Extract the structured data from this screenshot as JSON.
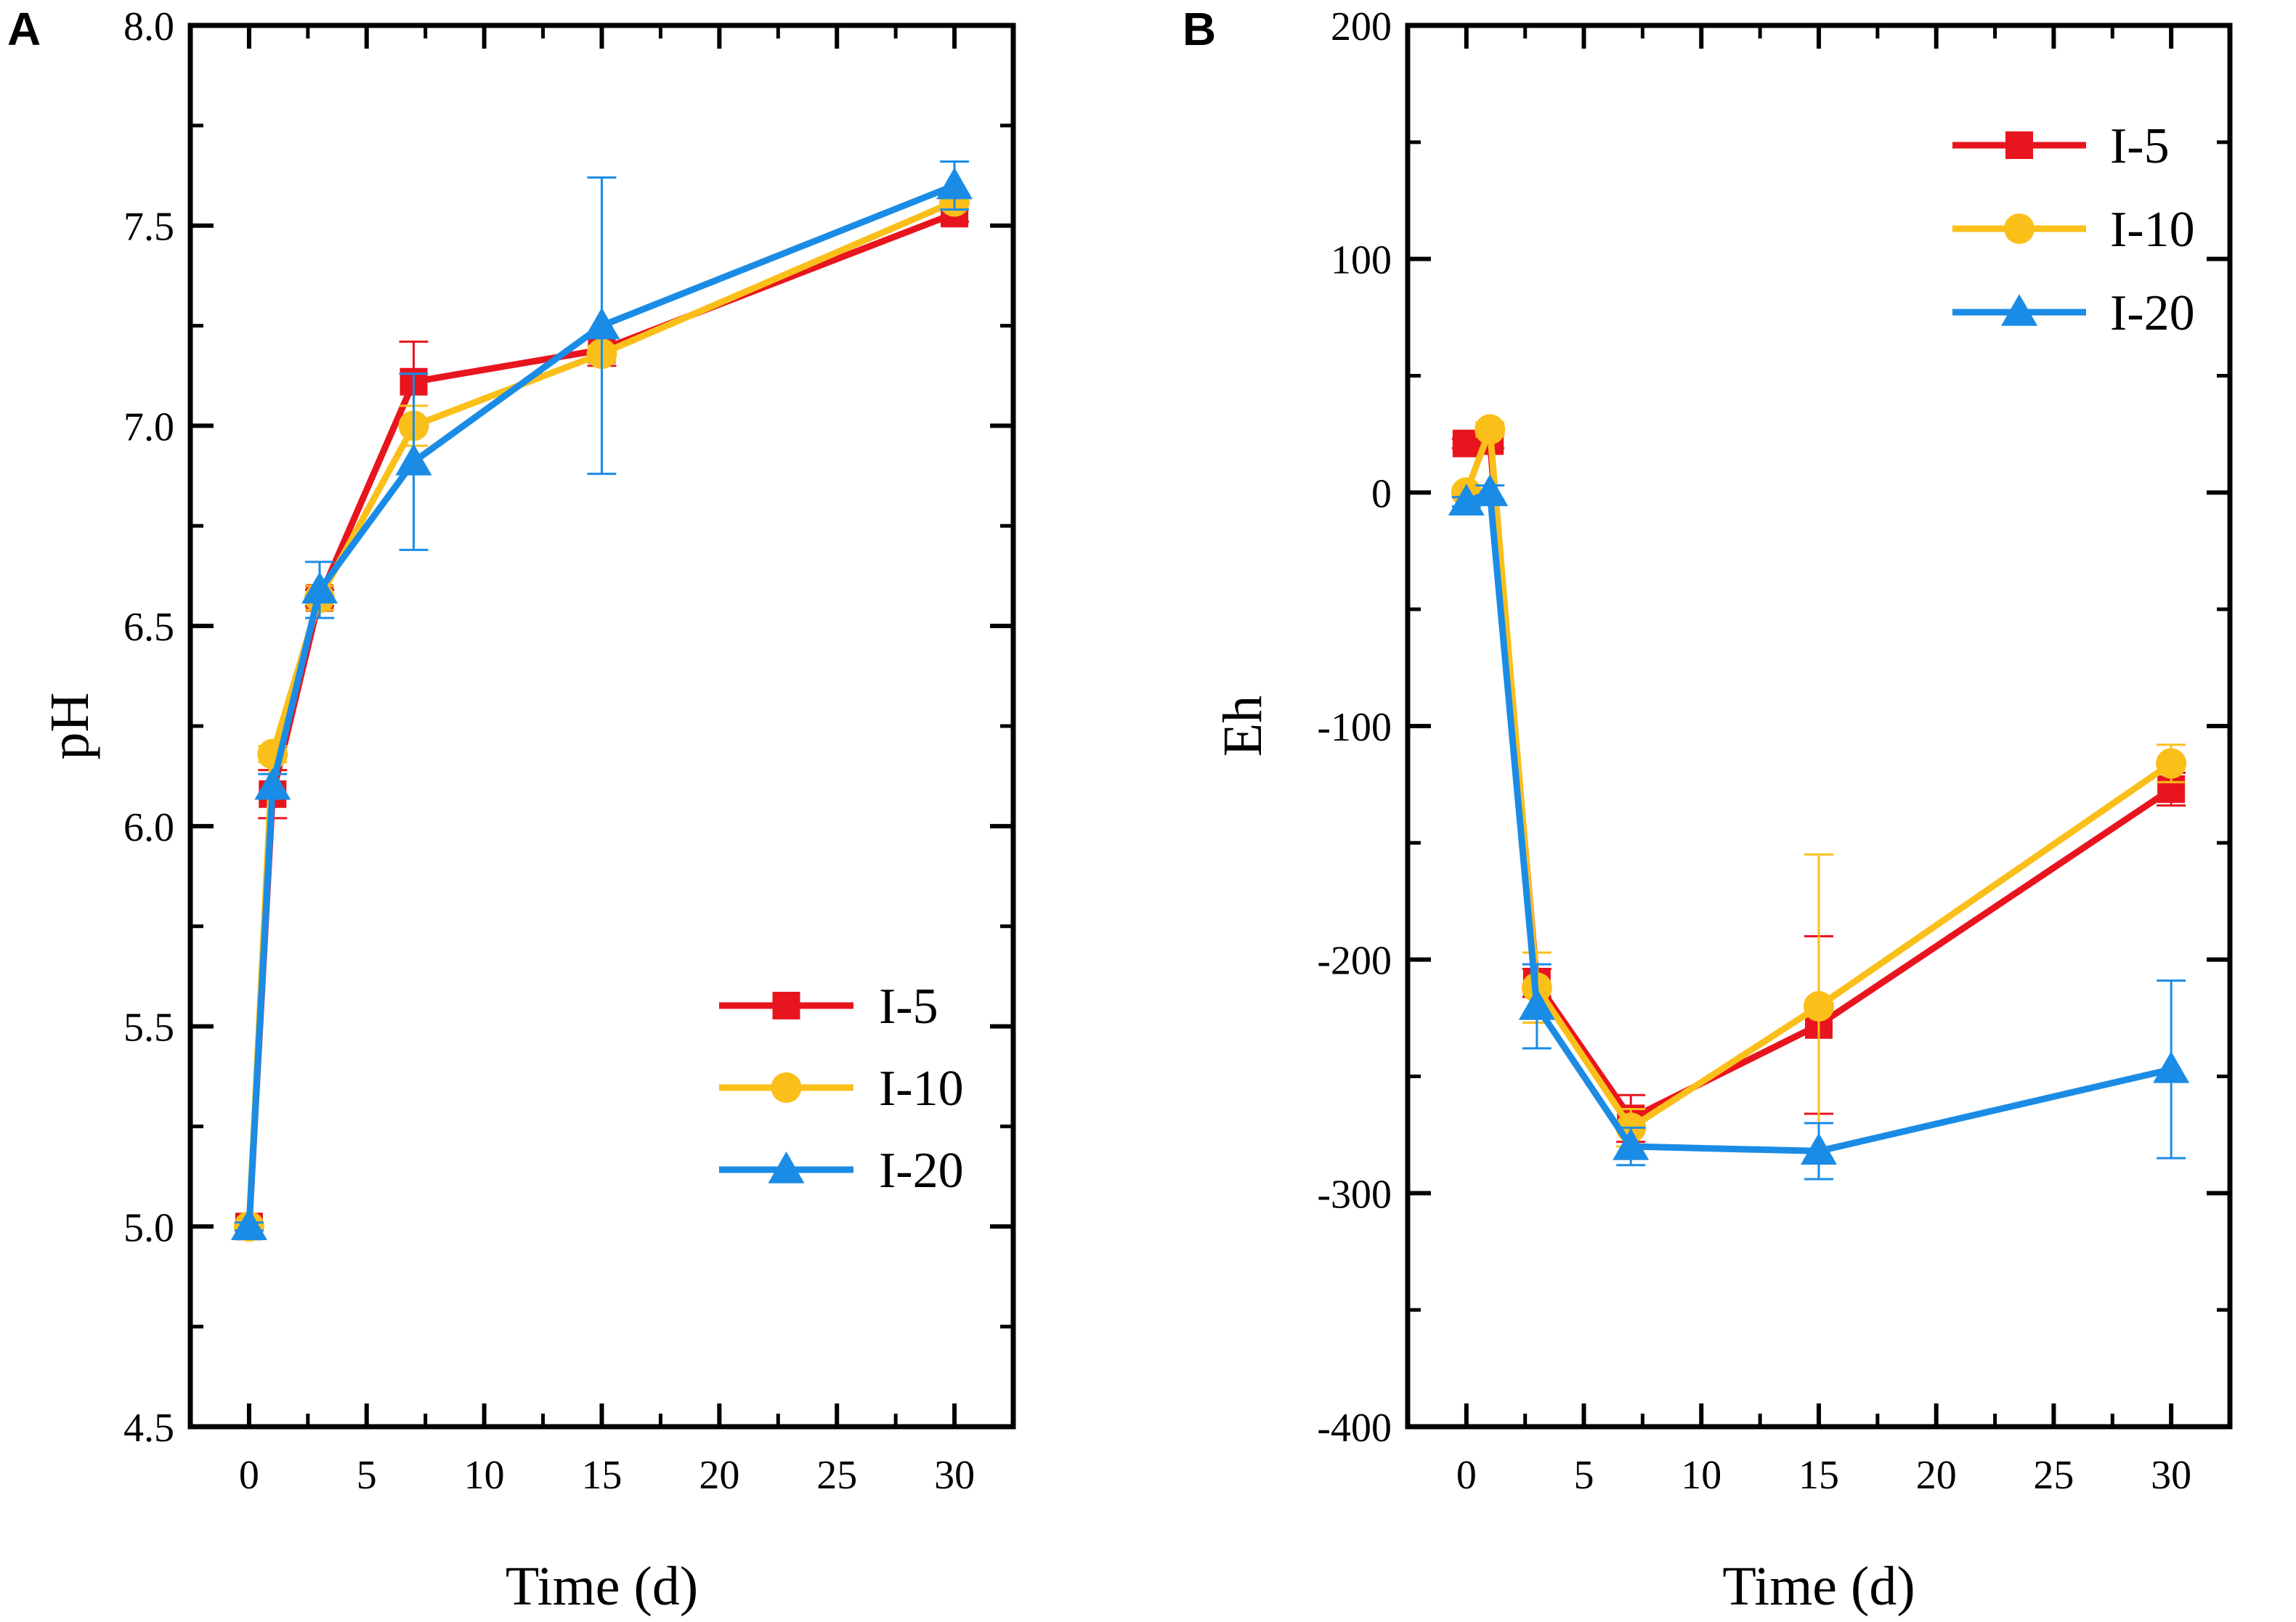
{
  "chart_data": [
    {
      "type": "line",
      "panel_label": "A",
      "xlabel": "Time (d)",
      "ylabel": "pH",
      "xlim": [
        -2.5,
        32.5
      ],
      "ylim": [
        4.5,
        8.0
      ],
      "x_ticks": [
        0,
        5,
        10,
        15,
        20,
        25,
        30
      ],
      "x_tick_labels": [
        "0",
        "5",
        "10",
        "15",
        "20",
        "25",
        "30"
      ],
      "y_ticks": [
        4.5,
        5.0,
        5.5,
        6.0,
        6.5,
        7.0,
        7.5,
        8.0
      ],
      "y_tick_labels": [
        "4.5",
        "5.0",
        "5.5",
        "6.0",
        "6.5",
        "7.0",
        "7.5",
        "8.0"
      ],
      "legend_position": "bottom-right",
      "x": [
        0,
        1,
        3,
        7,
        15,
        30
      ],
      "series": [
        {
          "name": "I-5",
          "color": "#e8141e",
          "marker": "square",
          "values": [
            5.0,
            6.08,
            6.57,
            7.11,
            7.19,
            7.53
          ],
          "errors": [
            0.01,
            0.06,
            0.02,
            0.1,
            0.04,
            0.02
          ]
        },
        {
          "name": "I-10",
          "color": "#fbbf1a",
          "marker": "circle",
          "values": [
            5.0,
            6.18,
            6.57,
            7.0,
            7.18,
            7.56
          ],
          "errors": [
            0.01,
            0.02,
            0.03,
            0.05,
            0.02,
            0.02
          ]
        },
        {
          "name": "I-20",
          "color": "#1a8ce6",
          "marker": "triangle",
          "values": [
            5.0,
            6.1,
            6.59,
            6.91,
            7.25,
            7.6
          ],
          "errors": [
            0.01,
            0.03,
            0.07,
            0.22,
            0.37,
            0.06
          ]
        }
      ]
    },
    {
      "type": "line",
      "panel_label": "B",
      "xlabel": "Time (d)",
      "ylabel": "Eh",
      "xlim": [
        -2.5,
        32.5
      ],
      "ylim": [
        -400,
        200
      ],
      "x_ticks": [
        0,
        5,
        10,
        15,
        20,
        25,
        30
      ],
      "x_tick_labels": [
        "0",
        "5",
        "10",
        "15",
        "20",
        "25",
        "30"
      ],
      "y_ticks": [
        -400,
        -300,
        -200,
        -100,
        0,
        100,
        200
      ],
      "y_tick_labels": [
        "-400",
        "-300",
        "-200",
        "-100",
        "0",
        "100",
        "200"
      ],
      "legend_position": "top-right",
      "x": [
        0,
        1,
        3,
        7,
        15,
        30
      ],
      "series": [
        {
          "name": "I-5",
          "color": "#e8141e",
          "marker": "square",
          "values": [
            21,
            22,
            -210,
            -268,
            -228,
            -127
          ],
          "errors": [
            2,
            3,
            6,
            10,
            38,
            7
          ]
        },
        {
          "name": "I-10",
          "color": "#fbbf1a",
          "marker": "circle",
          "values": [
            0,
            27,
            -212,
            -272,
            -220,
            -116
          ],
          "errors": [
            2,
            3,
            15,
            8,
            65,
            8
          ]
        },
        {
          "name": "I-20",
          "color": "#1a8ce6",
          "marker": "triangle",
          "values": [
            -4,
            0,
            -220,
            -280,
            -282,
            -247
          ],
          "errors": [
            2,
            3,
            18,
            8,
            12,
            38
          ]
        }
      ]
    }
  ]
}
